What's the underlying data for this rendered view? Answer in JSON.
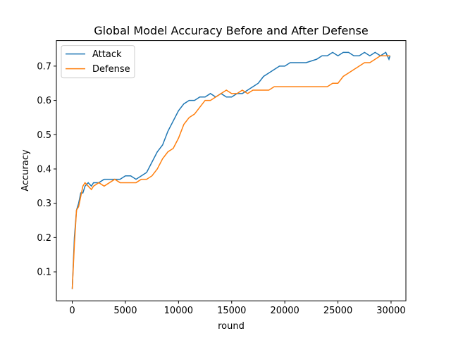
{
  "chart_data": {
    "type": "line",
    "title": "Global Model Accuracy Before and After Defense",
    "x_label": "round",
    "y_label": "Accuracy",
    "xlim": [
      -1495,
      31395
    ],
    "xticks": [
      0,
      5000,
      10000,
      15000,
      20000,
      25000,
      30000
    ],
    "ylim": [
      0.0155,
      0.7745
    ],
    "yticks": [
      0.1,
      0.2,
      0.3,
      0.4,
      0.5,
      0.6,
      0.7
    ],
    "legend": "upper left",
    "series": [
      {
        "name": "Attack",
        "color": "#1f77b4",
        "x": [
          0,
          200,
          400,
          600,
          800,
          1000,
          1200,
          1500,
          1800,
          2000,
          2500,
          3000,
          3500,
          4000,
          4500,
          5000,
          5500,
          6000,
          6500,
          7000,
          7500,
          8000,
          8500,
          9000,
          9500,
          10000,
          10500,
          11000,
          11500,
          12000,
          12500,
          13000,
          13500,
          14000,
          14500,
          15000,
          15500,
          16000,
          16500,
          17000,
          17500,
          18000,
          18500,
          19000,
          19500,
          20000,
          20500,
          21000,
          22000,
          23000,
          23500,
          24000,
          24500,
          25000,
          25500,
          26000,
          26500,
          27000,
          27500,
          28000,
          28500,
          29000,
          29500,
          29800,
          29900
        ],
        "values": [
          0.05,
          0.2,
          0.28,
          0.3,
          0.33,
          0.33,
          0.35,
          0.36,
          0.35,
          0.36,
          0.36,
          0.37,
          0.37,
          0.37,
          0.37,
          0.38,
          0.38,
          0.37,
          0.38,
          0.39,
          0.42,
          0.45,
          0.47,
          0.51,
          0.54,
          0.57,
          0.59,
          0.6,
          0.6,
          0.61,
          0.61,
          0.62,
          0.61,
          0.62,
          0.61,
          0.61,
          0.62,
          0.62,
          0.63,
          0.64,
          0.65,
          0.67,
          0.68,
          0.69,
          0.7,
          0.7,
          0.71,
          0.71,
          0.71,
          0.72,
          0.73,
          0.73,
          0.74,
          0.73,
          0.74,
          0.74,
          0.73,
          0.73,
          0.74,
          0.73,
          0.74,
          0.73,
          0.74,
          0.72,
          0.73
        ]
      },
      {
        "name": "Defense",
        "color": "#ff7f0e",
        "x": [
          0,
          200,
          400,
          600,
          800,
          1000,
          1200,
          1500,
          1800,
          2000,
          2500,
          3000,
          3500,
          4000,
          4500,
          5000,
          5500,
          6000,
          6500,
          7000,
          7500,
          8000,
          8500,
          9000,
          9500,
          10000,
          10500,
          11000,
          11500,
          12000,
          12500,
          13000,
          13500,
          14000,
          14500,
          15000,
          15500,
          16000,
          16500,
          17000,
          17500,
          18000,
          18500,
          19000,
          20000,
          21000,
          22000,
          23000,
          24000,
          24500,
          25000,
          25500,
          26000,
          26500,
          27000,
          27500,
          28000,
          28500,
          29000,
          29500,
          29900
        ],
        "values": [
          0.05,
          0.18,
          0.28,
          0.29,
          0.32,
          0.35,
          0.36,
          0.35,
          0.34,
          0.35,
          0.36,
          0.35,
          0.36,
          0.37,
          0.36,
          0.36,
          0.36,
          0.36,
          0.37,
          0.37,
          0.38,
          0.4,
          0.43,
          0.45,
          0.46,
          0.49,
          0.53,
          0.55,
          0.56,
          0.58,
          0.6,
          0.6,
          0.61,
          0.62,
          0.63,
          0.62,
          0.62,
          0.63,
          0.62,
          0.63,
          0.63,
          0.63,
          0.63,
          0.64,
          0.64,
          0.64,
          0.64,
          0.64,
          0.64,
          0.65,
          0.65,
          0.67,
          0.68,
          0.69,
          0.7,
          0.71,
          0.71,
          0.72,
          0.73,
          0.73,
          0.73
        ]
      }
    ]
  }
}
